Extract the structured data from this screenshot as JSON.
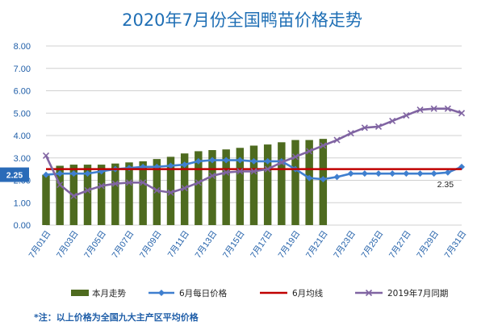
{
  "chart_data": {
    "type": "bar",
    "title": "2020年7月份全国鸭苗价格走势",
    "ylim": [
      0,
      8
    ],
    "yticks": [
      "0.00",
      "1.00",
      "2.00",
      "3.00",
      "4.00",
      "5.00",
      "6.00",
      "7.00",
      "8.00"
    ],
    "x": [
      "7月01日",
      "7月02日",
      "7月03日",
      "7月04日",
      "7月05日",
      "7月06日",
      "7月07日",
      "7月08日",
      "7月09日",
      "7月10日",
      "7月11日",
      "7月12日",
      "7月13日",
      "7月14日",
      "7月15日",
      "7月16日",
      "7月17日",
      "7月18日",
      "7月19日",
      "7月20日",
      "7月21日",
      "7月22日",
      "7月23日",
      "7月24日",
      "7月25日",
      "7月26日",
      "7月27日",
      "7月28日",
      "7月29日",
      "7月30日",
      "7月31日"
    ],
    "xtick_labels": [
      "7月01日",
      "7月03日",
      "7月05日",
      "7月07日",
      "7月09日",
      "7月11日",
      "7月13日",
      "7月15日",
      "7月17日",
      "7月19日",
      "7月21日",
      "7月23日",
      "7月25日",
      "7月27日",
      "7月29日",
      "7月31日"
    ],
    "grid": true,
    "legend_position": "bottom",
    "series": [
      {
        "name": "本月走势",
        "type": "bar",
        "color": "#4e6b1f",
        "values": [
          2.25,
          2.65,
          2.7,
          2.7,
          2.7,
          2.75,
          2.8,
          2.85,
          2.95,
          3.05,
          3.2,
          3.3,
          3.35,
          3.38,
          3.45,
          3.55,
          3.6,
          3.7,
          3.8,
          3.8,
          3.85,
          null,
          null,
          null,
          null,
          null,
          null,
          null,
          null,
          null,
          null
        ]
      },
      {
        "name": "6月每日价格",
        "type": "line",
        "marker": "diamond",
        "color": "#3f7fcf",
        "values": [
          2.25,
          2.3,
          2.3,
          2.3,
          2.4,
          2.5,
          2.55,
          2.6,
          2.6,
          2.65,
          2.7,
          2.85,
          2.9,
          2.9,
          2.9,
          2.85,
          2.85,
          2.85,
          2.5,
          2.1,
          2.05,
          2.15,
          2.3,
          2.3,
          2.3,
          2.3,
          2.3,
          2.3,
          2.3,
          2.35,
          2.6
        ]
      },
      {
        "name": "6月均线",
        "type": "line",
        "color": "#c00000",
        "values": [
          2.5,
          2.5,
          2.5,
          2.5,
          2.5,
          2.5,
          2.5,
          2.5,
          2.5,
          2.5,
          2.5,
          2.5,
          2.5,
          2.5,
          2.5,
          2.5,
          2.5,
          2.5,
          2.5,
          2.5,
          2.5,
          2.5,
          2.5,
          2.5,
          2.5,
          2.5,
          2.5,
          2.5,
          2.5,
          2.5,
          2.5
        ]
      },
      {
        "name": "2019年7月同期",
        "type": "line",
        "marker": "x",
        "color": "#8064a2",
        "values": [
          3.1,
          1.8,
          1.3,
          1.55,
          1.75,
          1.85,
          1.9,
          1.9,
          1.55,
          1.45,
          1.65,
          1.9,
          2.2,
          2.35,
          2.4,
          2.4,
          2.5,
          2.8,
          3.05,
          3.3,
          3.55,
          3.8,
          4.1,
          4.35,
          4.4,
          4.65,
          4.9,
          5.15,
          5.2,
          5.2,
          5.0
        ]
      }
    ],
    "annotations": {
      "start_label": "2.25",
      "end_label": "2.35"
    }
  },
  "legend": {
    "bar": "本月走势",
    "june_daily": "6月每日价格",
    "june_avg": "6月均线",
    "last_year": "2019年7月同期"
  },
  "footnote": "*注：以上价格为全国九大主产区平均价格",
  "colors": {
    "title": "#1f6fb5",
    "axis_text": "#1f5ea8",
    "grid": "#d0d0d0",
    "bar": "#4e6b1f",
    "june_daily": "#3f7fcf",
    "june_avg": "#c00000",
    "last_year": "#8064a2"
  }
}
